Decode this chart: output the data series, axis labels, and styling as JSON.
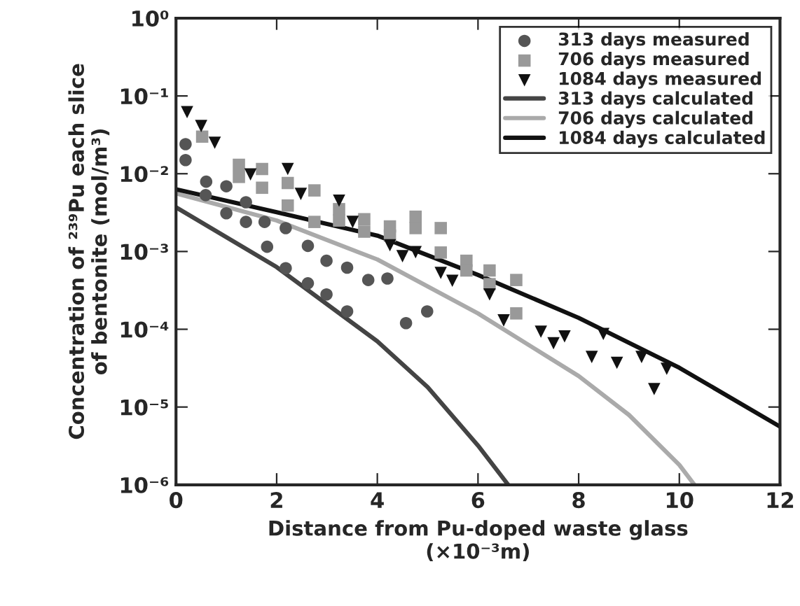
{
  "chart_data": {
    "type": "scatter",
    "xlabel": "Distance from Pu-doped waste glass\n(×10⁻³m)",
    "ylabel": "Concentration of ²³⁹Pu each slice\nof bentonite (mol/m³)",
    "log": "y",
    "grid": false,
    "legend": "top right",
    "xlim": [
      0,
      12
    ],
    "xticks": [
      0,
      2,
      4,
      6,
      8,
      10,
      12
    ],
    "ylim": [
      1e-06,
      1
    ],
    "yticks": [
      {
        "value": 1,
        "label": "10⁰"
      },
      {
        "value": 0.1,
        "label": "10⁻¹"
      },
      {
        "value": 0.01,
        "label": "10⁻²"
      },
      {
        "value": 0.001,
        "label": "10⁻³"
      },
      {
        "value": 0.0001,
        "label": "10⁻⁴"
      },
      {
        "value": 1e-05,
        "label": "10⁻⁵"
      },
      {
        "value": 1e-06,
        "label": "10⁻⁶"
      }
    ],
    "series": [
      {
        "name": "313 days measured",
        "marker": "circle",
        "color": "#555555",
        "x": [
          0.19,
          0.19,
          0.6,
          0.59,
          1.0,
          1.0,
          1.39,
          1.39,
          1.76,
          1.81,
          2.18,
          2.18,
          2.62,
          2.62,
          2.99,
          2.99,
          3.4,
          3.4,
          3.82,
          4.2,
          4.57,
          4.99
        ],
        "values": [
          0.024,
          0.015,
          0.0079,
          0.0053,
          0.0069,
          0.0031,
          0.0043,
          0.0024,
          0.0024,
          0.00115,
          0.002,
          0.00061,
          0.00118,
          0.00039,
          0.00076,
          0.00028,
          0.00062,
          0.00017,
          0.00043,
          0.00045,
          0.00012,
          0.00017
        ]
      },
      {
        "name": "706 days measured",
        "marker": "square",
        "color": "#999999",
        "x": [
          0.52,
          1.25,
          1.25,
          1.71,
          1.71,
          2.22,
          2.22,
          2.75,
          2.75,
          3.24,
          3.24,
          3.74,
          3.74,
          4.25,
          4.25,
          4.76,
          4.76,
          5.26,
          5.26,
          5.77,
          5.77,
          6.23,
          6.23,
          6.76,
          6.76
        ],
        "values": [
          0.03,
          0.013,
          0.0091,
          0.0115,
          0.0066,
          0.0076,
          0.0039,
          0.0061,
          0.0024,
          0.0035,
          0.0025,
          0.0026,
          0.0018,
          0.0021,
          0.0016,
          0.0028,
          0.002,
          0.002,
          0.00097,
          0.00076,
          0.00057,
          0.00057,
          0.00038,
          0.00043,
          0.00016
        ]
      },
      {
        "name": "1084 days measured",
        "marker": "triangle",
        "color": "#111111",
        "x": [
          0.22,
          0.5,
          0.77,
          1.48,
          2.22,
          2.48,
          3.24,
          3.51,
          4.25,
          4.5,
          4.76,
          5.26,
          5.49,
          6.23,
          6.51,
          7.25,
          7.5,
          7.72,
          8.26,
          8.49,
          8.76,
          9.25,
          9.5,
          9.75
        ],
        "values": [
          0.062,
          0.041,
          0.025,
          0.0098,
          0.0115,
          0.0055,
          0.0045,
          0.0024,
          0.0012,
          0.00087,
          0.00098,
          0.00053,
          0.00042,
          0.00028,
          0.00013,
          9.3e-05,
          6.6e-05,
          8.1e-05,
          4.4e-05,
          8.7e-05,
          3.7e-05,
          4.4e-05,
          1.7e-05,
          3.1e-05
        ]
      },
      {
        "name": "313 days calculated",
        "type": "line",
        "marker": "none",
        "line_style": "solid",
        "color": "#444444",
        "x": [
          0,
          2,
          4,
          5,
          6,
          6.6
        ],
        "values": [
          0.0037,
          0.00063,
          7e-05,
          1.8e-05,
          3.2e-06,
          1e-06
        ]
      },
      {
        "name": "706 days calculated",
        "type": "line",
        "marker": "none",
        "line_style": "solid",
        "color": "#aaaaaa",
        "x": [
          0,
          2,
          4,
          6,
          8,
          9,
          10,
          10.3
        ],
        "values": [
          0.0056,
          0.0025,
          0.00079,
          0.00016,
          2.5e-05,
          7.9e-06,
          1.8e-06,
          1e-06
        ]
      },
      {
        "name": "1084 days calculated",
        "type": "line",
        "marker": "none",
        "line_style": "solid",
        "color": "#111111",
        "x": [
          0,
          2,
          4,
          6,
          8,
          10,
          12
        ],
        "values": [
          0.0063,
          0.0032,
          0.0016,
          0.0005,
          0.00014,
          3.2e-05,
          5.6e-06
        ]
      }
    ]
  }
}
